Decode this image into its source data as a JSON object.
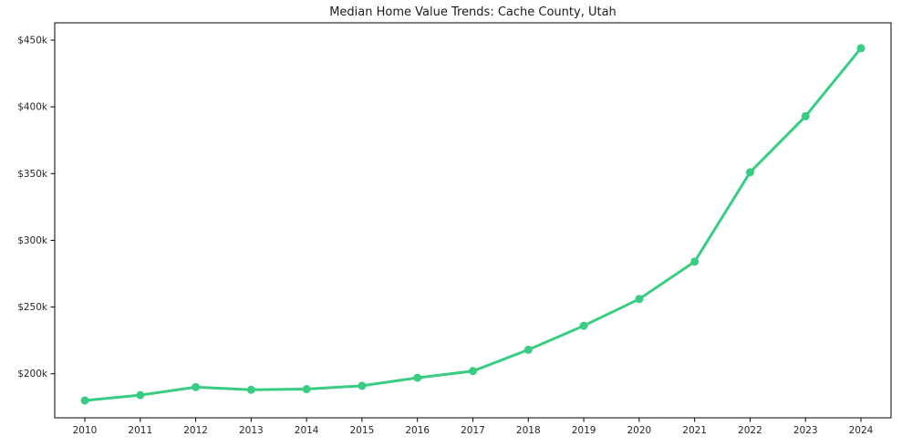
{
  "chart_data": {
    "type": "line",
    "title": "Median Home Value Trends: Cache County, Utah",
    "x": [
      2010,
      2011,
      2012,
      2013,
      2014,
      2015,
      2016,
      2017,
      2018,
      2019,
      2020,
      2021,
      2022,
      2023,
      2024
    ],
    "x_tick_labels": [
      "2010",
      "2011",
      "2012",
      "2013",
      "2014",
      "2015",
      "2016",
      "2017",
      "2018",
      "2019",
      "2020",
      "2021",
      "2022",
      "2023",
      "2024"
    ],
    "series": [
      {
        "name": "Median Home Value",
        "values": [
          180000,
          184000,
          190000,
          188000,
          188500,
          191000,
          197000,
          202000,
          218000,
          236000,
          256000,
          284000,
          351000,
          393000,
          444000
        ]
      }
    ],
    "xlabel": "",
    "ylabel": "",
    "y_ticks": [
      200000,
      250000,
      300000,
      350000,
      400000,
      450000
    ],
    "y_tick_labels": [
      "$200k",
      "$250k",
      "$300k",
      "$350k",
      "$400k",
      "$450k"
    ],
    "ylim": [
      167000,
      463000
    ],
    "grid": false,
    "legend": false,
    "line_color": "#38cd82",
    "marker": "circle",
    "axis_color": "#000000"
  }
}
